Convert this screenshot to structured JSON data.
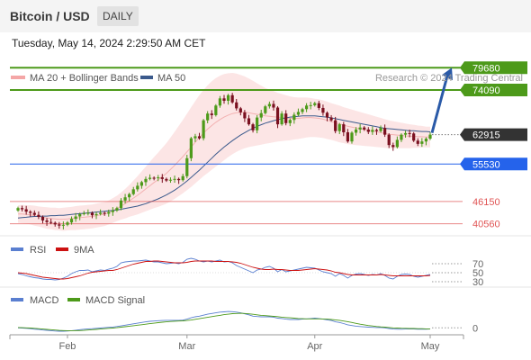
{
  "header": {
    "title": "Bitcoin / USD",
    "timeframe": "DAILY"
  },
  "datetime": "Tuesday, May 14, 2024 2:29:50 AM CET",
  "colors": {
    "green": "#4d9a1a",
    "blue": "#2563eb",
    "red": "#e05555",
    "pink": "#f4a6a6",
    "ma50": "#3b5a8c",
    "dark": "#333333",
    "candle_up": "#4d9a1a",
    "candle_down": "#7a1020",
    "rsi": "#5a7fd0",
    "rsi_ma": "#cc1111",
    "macd": "#5a7fd0",
    "macd_signal": "#4d9a1a"
  },
  "legend": {
    "ma20": "MA 20 + Bollinger Bands",
    "ma50": "MA 50"
  },
  "watermark": "Research © 2024 Trading Central",
  "rsi_legend": {
    "rsi": "RSI",
    "ma": "9MA"
  },
  "macd_legend": {
    "macd": "MACD",
    "signal": "MACD Signal"
  },
  "chart_data": [
    {
      "type": "candlestick",
      "title": "Bitcoin / USD",
      "xlabel": "",
      "ylabel": "",
      "x_ticks": [
        "Feb",
        "Mar",
        "Apr",
        "May"
      ],
      "ylim": [
        38000,
        82000
      ],
      "grid": false,
      "legend_position": "top-left",
      "levels": [
        {
          "label": "79680",
          "value": 79680,
          "color": "#4d9a1a",
          "kind": "target"
        },
        {
          "label": "74090",
          "value": 74090,
          "color": "#4d9a1a",
          "kind": "target"
        },
        {
          "label": "62915",
          "value": 62915,
          "color": "#333333",
          "kind": "last"
        },
        {
          "label": "55530",
          "value": 55530,
          "color": "#2563eb",
          "kind": "pivot"
        },
        {
          "label": "46150",
          "value": 46150,
          "color": "#e05555",
          "kind": "support"
        },
        {
          "label": "40560",
          "value": 40560,
          "color": "#e05555",
          "kind": "support"
        }
      ],
      "close": [
        44500,
        44200,
        43600,
        43300,
        42800,
        42300,
        41400,
        41000,
        40800,
        40400,
        40100,
        40300,
        40900,
        41800,
        42400,
        43000,
        43200,
        43300,
        42700,
        43000,
        43300,
        43100,
        43500,
        43900,
        44500,
        46400,
        47200,
        48000,
        49200,
        50100,
        51000,
        51800,
        52100,
        52000,
        52200,
        51800,
        51400,
        51600,
        51800,
        51500,
        52500,
        57000,
        62000,
        62500,
        62000,
        66500,
        68200,
        67800,
        70200,
        72000,
        71400,
        72800,
        71000,
        69500,
        68500,
        67000,
        65500,
        64000,
        67200,
        68300,
        70000,
        70600,
        69700,
        65500,
        68200,
        65800,
        66600,
        67900,
        68600,
        69300,
        70200,
        70300,
        70800,
        69600,
        68400,
        67200,
        66500,
        63800,
        65500,
        63500,
        61200,
        63400,
        64200,
        64700,
        64200,
        63600,
        64100,
        63800,
        64600,
        62900,
        60300,
        59800,
        61600,
        62900,
        63300,
        63200,
        61400,
        60600,
        61200,
        61900,
        62915
      ],
      "ma20": [
        43000,
        43000,
        42900,
        42800,
        42600,
        42400,
        42200,
        42000,
        41900,
        41800,
        41700,
        41700,
        41800,
        41900,
        42000,
        42100,
        42200,
        42300,
        42400,
        42600,
        42800,
        43000,
        43400,
        43900,
        44400,
        45000,
        45600,
        46300,
        47000,
        47700,
        48500,
        49300,
        50100,
        50900,
        51600,
        52400,
        53200,
        54200,
        55200,
        56300,
        57400,
        58600,
        59800,
        61000,
        62200,
        63300,
        64300,
        65200,
        66000,
        66700,
        67300,
        67800,
        68200,
        68400,
        68500,
        68500,
        68400,
        68200,
        68000,
        67800,
        67600,
        67500,
        67400,
        67300,
        67200,
        67100,
        67000,
        67000,
        67000,
        67100,
        67200,
        67200,
        67100,
        67000,
        66800,
        66500,
        66200,
        65900,
        65600,
        65300,
        65000,
        64800,
        64600,
        64400,
        64200,
        64000,
        63800,
        63600,
        63400,
        63200,
        63000,
        62900,
        62800,
        62700,
        62600,
        62500,
        62500,
        62400,
        62400,
        62300,
        62300
      ],
      "ma50": [
        42000,
        42100,
        42200,
        42300,
        42400,
        42400,
        42500,
        42500,
        42600,
        42600,
        42700,
        42700,
        42800,
        42900,
        43000,
        43100,
        43200,
        43300,
        43400,
        43500,
        43600,
        43700,
        43800,
        43900,
        44000,
        44200,
        44400,
        44600,
        44800,
        45000,
        45300,
        45600,
        46000,
        46400,
        46800,
        47300,
        47800,
        48400,
        49000,
        49700,
        50500,
        51300,
        52200,
        53100,
        54000,
        55000,
        56000,
        57000,
        58000,
        58900,
        59800,
        60600,
        61400,
        62100,
        62800,
        63400,
        64000,
        64500,
        65000,
        65400,
        65800,
        66100,
        66400,
        66700,
        66900,
        67100,
        67300,
        67400,
        67500,
        67600,
        67600,
        67600,
        67600,
        67500,
        67400,
        67300,
        67100,
        66900,
        66700,
        66500,
        66300,
        66100,
        65900,
        65700,
        65500,
        65300,
        65100,
        64900,
        64700,
        64500,
        64400,
        64300,
        64200,
        64100,
        64000,
        63900,
        63900,
        63800,
        63700,
        63700,
        63600
      ],
      "bb_width": [
        2200,
        2300,
        2300,
        2400,
        2500,
        2500,
        2600,
        2700,
        2700,
        2800,
        2800,
        2900,
        2900,
        2900,
        3000,
        3000,
        3000,
        3000,
        3000,
        3000,
        3000,
        3000,
        3000,
        3100,
        3200,
        3400,
        3700,
        4000,
        4400,
        4800,
        5200,
        5600,
        6000,
        6400,
        6800,
        7200,
        7600,
        8000,
        8400,
        8800,
        9200,
        9600,
        10000,
        10300,
        10600,
        10800,
        11000,
        11100,
        11100,
        11000,
        10800,
        10500,
        10200,
        9800,
        9400,
        9000,
        8600,
        8200,
        7800,
        7400,
        7000,
        6700,
        6400,
        6100,
        5900,
        5700,
        5500,
        5300,
        5200,
        5100,
        5000,
        4900,
        4800,
        4800,
        4700,
        4700,
        4600,
        4600,
        4600,
        4500,
        4500,
        4400,
        4300,
        4200,
        4100,
        4000,
        3900,
        3800,
        3700,
        3600,
        3500,
        3400,
        3300,
        3200,
        3100,
        3000,
        2900,
        2800,
        2700,
        2600,
        2600
      ]
    },
    {
      "type": "line",
      "title": "RSI",
      "y_ticks": [
        70,
        50,
        30
      ],
      "ylim": [
        20,
        80
      ],
      "series": [
        {
          "name": "RSI",
          "values": [
            48,
            46,
            43,
            41,
            39,
            38,
            36,
            35,
            35,
            34,
            35,
            38,
            42,
            48,
            52,
            55,
            55,
            56,
            52,
            54,
            56,
            55,
            58,
            60,
            64,
            72,
            74,
            75,
            76,
            76,
            77,
            78,
            76,
            74,
            74,
            72,
            70,
            71,
            72,
            70,
            73,
            80,
            82,
            80,
            76,
            74,
            76,
            74,
            76,
            78,
            74,
            75,
            72,
            66,
            62,
            58,
            54,
            50,
            56,
            58,
            62,
            64,
            60,
            52,
            57,
            52,
            54,
            56,
            58,
            60,
            62,
            61,
            60,
            56,
            52,
            50,
            48,
            42,
            48,
            44,
            38,
            44,
            47,
            48,
            46,
            44,
            46,
            45,
            48,
            44,
            38,
            36,
            42,
            46,
            47,
            46,
            42,
            40,
            42,
            44,
            46
          ]
        },
        {
          "name": "9MA",
          "values": [
            50,
            49,
            48,
            46,
            44,
            42,
            40,
            39,
            38,
            37,
            36,
            36,
            37,
            39,
            41,
            43,
            46,
            49,
            51,
            52,
            53,
            54,
            55,
            55,
            57,
            60,
            63,
            66,
            69,
            71,
            73,
            75,
            75,
            76,
            76,
            75,
            74,
            73,
            72,
            72,
            72,
            73,
            75,
            76,
            76,
            76,
            76,
            76,
            75,
            75,
            75,
            75,
            74,
            73,
            71,
            68,
            65,
            62,
            60,
            58,
            57,
            57,
            58,
            57,
            57,
            56,
            55,
            55,
            55,
            56,
            57,
            58,
            59,
            58,
            57,
            56,
            54,
            51,
            50,
            48,
            46,
            45,
            45,
            45,
            45,
            45,
            45,
            45,
            46,
            45,
            44,
            43,
            43,
            43,
            43,
            43,
            43,
            43,
            43,
            43,
            44
          ]
        }
      ]
    },
    {
      "type": "line",
      "title": "MACD",
      "y_ticks": [
        0
      ],
      "ylim": [
        -1000,
        6000
      ],
      "series": [
        {
          "name": "MACD",
          "values": [
            0,
            -50,
            -150,
            -250,
            -400,
            -500,
            -650,
            -750,
            -850,
            -950,
            -1000,
            -1000,
            -950,
            -850,
            -700,
            -550,
            -400,
            -300,
            -250,
            -150,
            -50,
            50,
            150,
            250,
            400,
            600,
            800,
            1000,
            1200,
            1400,
            1600,
            1800,
            1950,
            2050,
            2150,
            2200,
            2250,
            2250,
            2250,
            2250,
            2300,
            2600,
            3000,
            3300,
            3500,
            3800,
            4100,
            4300,
            4500,
            4700,
            4800,
            4900,
            4850,
            4700,
            4500,
            4200,
            3900,
            3500,
            3400,
            3300,
            3300,
            3300,
            3200,
            2900,
            2800,
            2600,
            2500,
            2500,
            2500,
            2600,
            2700,
            2800,
            2900,
            2800,
            2600,
            2400,
            2200,
            1800,
            1600,
            1300,
            900,
            700,
            500,
            400,
            300,
            200,
            150,
            100,
            100,
            0,
            -200,
            -350,
            -400,
            -400,
            -350,
            -300,
            -350,
            -400,
            -400,
            -400,
            -350
          ]
        },
        {
          "name": "MACD Signal",
          "values": [
            100,
            50,
            0,
            -50,
            -150,
            -250,
            -350,
            -450,
            -550,
            -650,
            -750,
            -800,
            -850,
            -850,
            -850,
            -800,
            -750,
            -650,
            -550,
            -450,
            -350,
            -250,
            -150,
            -50,
            50,
            200,
            350,
            500,
            650,
            800,
            950,
            1100,
            1250,
            1400,
            1550,
            1700,
            1800,
            1900,
            2000,
            2050,
            2100,
            2200,
            2350,
            2550,
            2750,
            2950,
            3150,
            3350,
            3550,
            3750,
            3950,
            4100,
            4250,
            4300,
            4350,
            4300,
            4200,
            4050,
            3900,
            3750,
            3650,
            3550,
            3450,
            3350,
            3200,
            3100,
            3000,
            2900,
            2800,
            2750,
            2700,
            2700,
            2700,
            2700,
            2650,
            2600,
            2500,
            2400,
            2250,
            2050,
            1850,
            1600,
            1350,
            1100,
            900,
            700,
            550,
            400,
            300,
            200,
            100,
            0,
            -50,
            -100,
            -150,
            -200,
            -200,
            -250,
            -250,
            -300,
            -300
          ]
        }
      ]
    }
  ]
}
